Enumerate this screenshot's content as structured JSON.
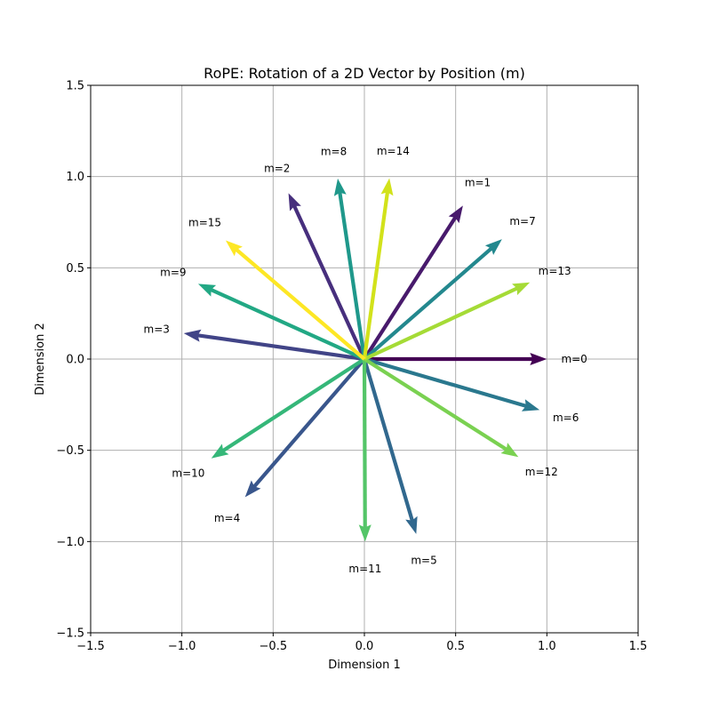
{
  "chart_data": {
    "type": "vector-field",
    "title": "RoPE: Rotation of a 2D Vector by Position (m)",
    "xlabel": "Dimension 1",
    "ylabel": "Dimension 2",
    "xlim": [
      -1.5,
      1.5
    ],
    "ylim": [
      -1.5,
      1.5
    ],
    "xticks": [
      -1.5,
      -1.0,
      -0.5,
      0.0,
      0.5,
      1.0,
      1.5
    ],
    "yticks": [
      -1.5,
      -1.0,
      -0.5,
      0.0,
      0.5,
      1.0,
      1.5
    ],
    "xtick_labels": [
      "−1.5",
      "−1.0",
      "−0.5",
      "0.0",
      "0.5",
      "1.0",
      "1.5"
    ],
    "ytick_labels": [
      "−1.5",
      "−1.0",
      "−0.5",
      "0.0",
      "0.5",
      "1.0",
      "1.5"
    ],
    "grid": true,
    "colormap": "viridis",
    "vectors": [
      {
        "label": "m=0",
        "x": 1.0,
        "y": 0.0,
        "color": "#440154"
      },
      {
        "label": "m=1",
        "x": 0.54,
        "y": 0.841,
        "color": "#481a6c"
      },
      {
        "label": "m=2",
        "x": -0.416,
        "y": 0.909,
        "color": "#472f7d"
      },
      {
        "label": "m=3",
        "x": -0.99,
        "y": 0.141,
        "color": "#414487"
      },
      {
        "label": "m=4",
        "x": -0.654,
        "y": -0.757,
        "color": "#39568c"
      },
      {
        "label": "m=5",
        "x": 0.284,
        "y": -0.959,
        "color": "#31688e"
      },
      {
        "label": "m=6",
        "x": 0.96,
        "y": -0.279,
        "color": "#2a788e"
      },
      {
        "label": "m=7",
        "x": 0.754,
        "y": 0.657,
        "color": "#23888e"
      },
      {
        "label": "m=8",
        "x": -0.146,
        "y": 0.989,
        "color": "#1f988b"
      },
      {
        "label": "m=9",
        "x": -0.911,
        "y": 0.412,
        "color": "#22a884"
      },
      {
        "label": "m=10",
        "x": -0.839,
        "y": -0.544,
        "color": "#35b779"
      },
      {
        "label": "m=11",
        "x": 0.004,
        "y": -1.0,
        "color": "#54c568"
      },
      {
        "label": "m=12",
        "x": 0.844,
        "y": -0.537,
        "color": "#7ad151"
      },
      {
        "label": "m=13",
        "x": 0.907,
        "y": 0.42,
        "color": "#a5db36"
      },
      {
        "label": "m=14",
        "x": 0.137,
        "y": 0.991,
        "color": "#d2e21b"
      },
      {
        "label": "m=15",
        "x": -0.76,
        "y": 0.65,
        "color": "#fde725"
      }
    ]
  }
}
